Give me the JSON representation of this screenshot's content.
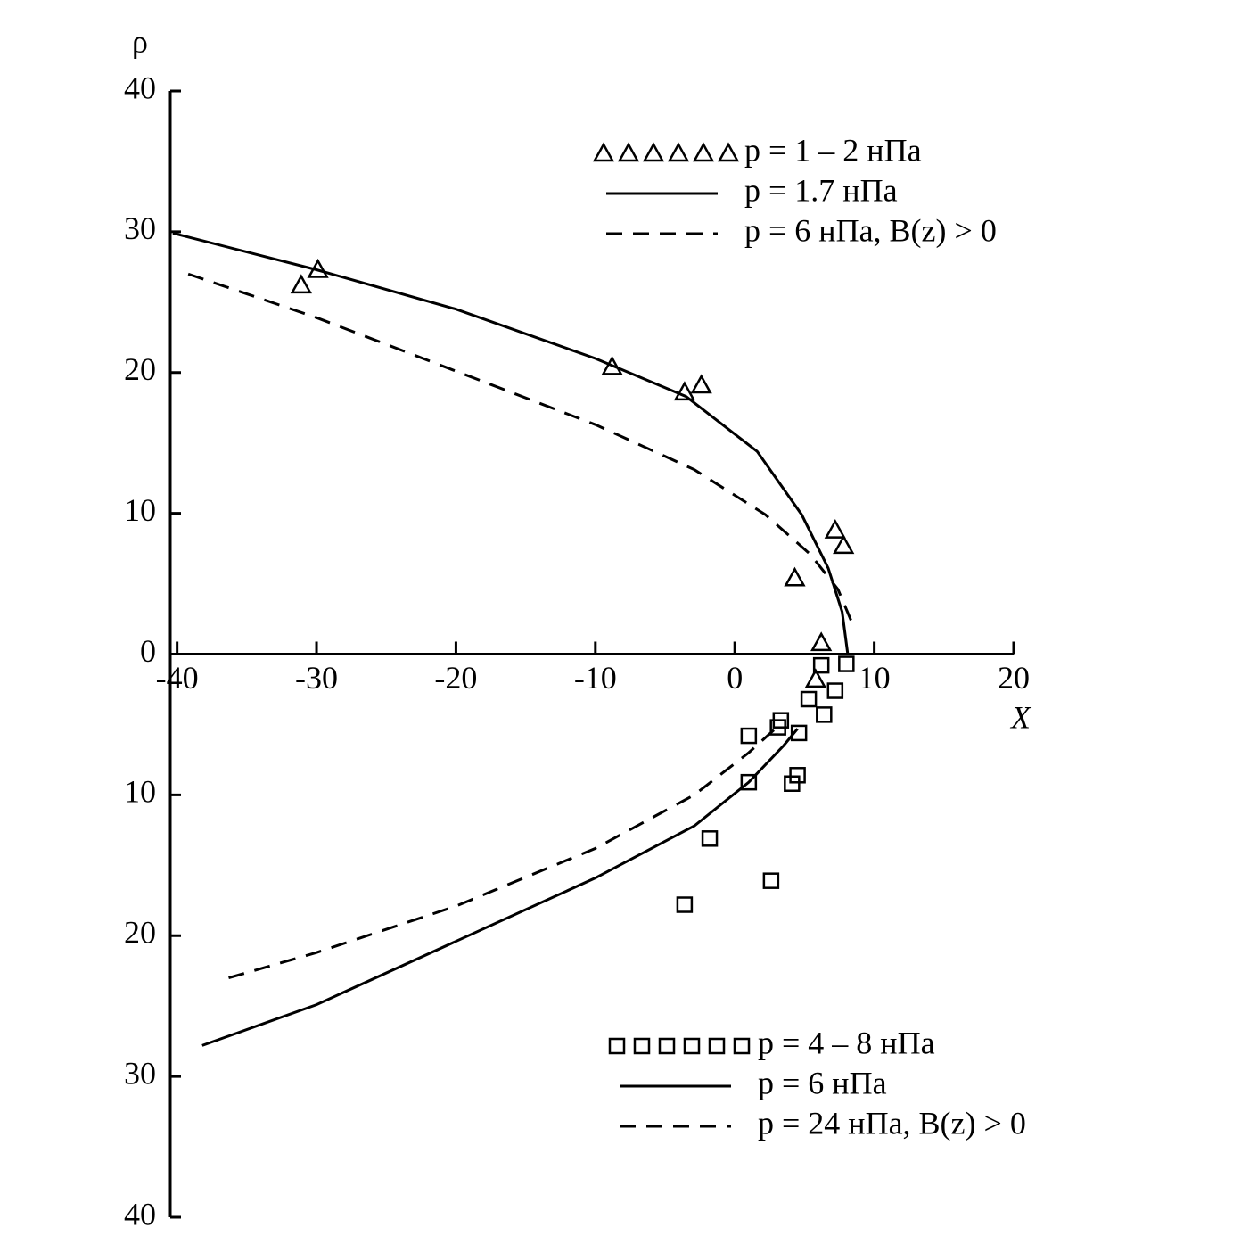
{
  "chart_data": {
    "type": "line",
    "xlabel": "X",
    "ylabel": "ρ",
    "xlim": [
      -41,
      20
    ],
    "ylim": [
      -40,
      40
    ],
    "xticks": [
      -40,
      -30,
      -20,
      -10,
      0,
      10,
      20
    ],
    "yticks": [
      {
        "value": -40,
        "label": "40"
      },
      {
        "value": -30,
        "label": "30"
      },
      {
        "value": -20,
        "label": "20"
      },
      {
        "value": -10,
        "label": "10"
      },
      0,
      10,
      20,
      30,
      40
    ],
    "color": "#000000",
    "series": [
      {
        "name": "p = 1 – 2 нПа",
        "style": "triangle",
        "legend": "upper right",
        "x": [
          -31.1,
          -29.9,
          -8.8,
          -3.6,
          -2.4,
          4.3,
          7.2,
          7.8,
          6.2,
          5.8
        ],
        "values": [
          26.2,
          27.3,
          20.4,
          18.6,
          19.1,
          5.4,
          8.8,
          7.7,
          0.8,
          -1.8
        ]
      },
      {
        "name": "p = 1.7 нПа",
        "style": "solid",
        "legend": "upper right",
        "x": [
          -40.3,
          -30,
          -20,
          -10,
          -3.5,
          1.6,
          4.8,
          6.7,
          7.7,
          8.1
        ],
        "values": [
          29.9,
          27.3,
          24.5,
          21,
          18.3,
          14.4,
          9.9,
          6.1,
          3,
          0
        ]
      },
      {
        "name": "p = 6 нПа, B(z) > 0",
        "style": "dashed",
        "legend": "upper right",
        "x": [
          -39.2,
          -30,
          -20,
          -10,
          -2.9,
          2.2,
          5.4,
          7.4,
          8.5
        ],
        "values": [
          27,
          23.9,
          20.1,
          16.3,
          13.1,
          9.9,
          7.1,
          4.6,
          2
        ]
      },
      {
        "name": "p = 4 – 8 нПа",
        "style": "square",
        "legend": "lower right",
        "x": [
          8.0,
          6.2,
          7.2,
          5.3,
          6.4,
          4.6,
          1.0,
          3.3,
          4.5,
          4.1,
          1.0,
          -1.8,
          2.6,
          -3.6,
          3.1
        ],
        "values": [
          -0.7,
          -0.8,
          -2.6,
          -3.2,
          -4.3,
          -5.6,
          -5.8,
          -4.7,
          -8.6,
          -9.2,
          -9.1,
          -13.1,
          -16.1,
          -17.8,
          -5.2
        ]
      },
      {
        "name": "p = 6 нПа",
        "style": "solid",
        "legend": "lower right",
        "x": [
          -38.2,
          -30,
          -20,
          -10,
          -2.9,
          1,
          3.5,
          4.5
        ],
        "values": [
          -27.8,
          -24.9,
          -20.4,
          -15.9,
          -12.2,
          -9.1,
          -6.5,
          -5.3
        ]
      },
      {
        "name": "p = 24 нПа, B(z) > 0",
        "style": "dashed",
        "legend": "lower right",
        "x": [
          -36.3,
          -30,
          -20,
          -10,
          -2.9,
          1,
          2.9
        ],
        "values": [
          -23,
          -21.2,
          -17.9,
          -13.8,
          -10,
          -7,
          -5.3
        ]
      }
    ]
  }
}
